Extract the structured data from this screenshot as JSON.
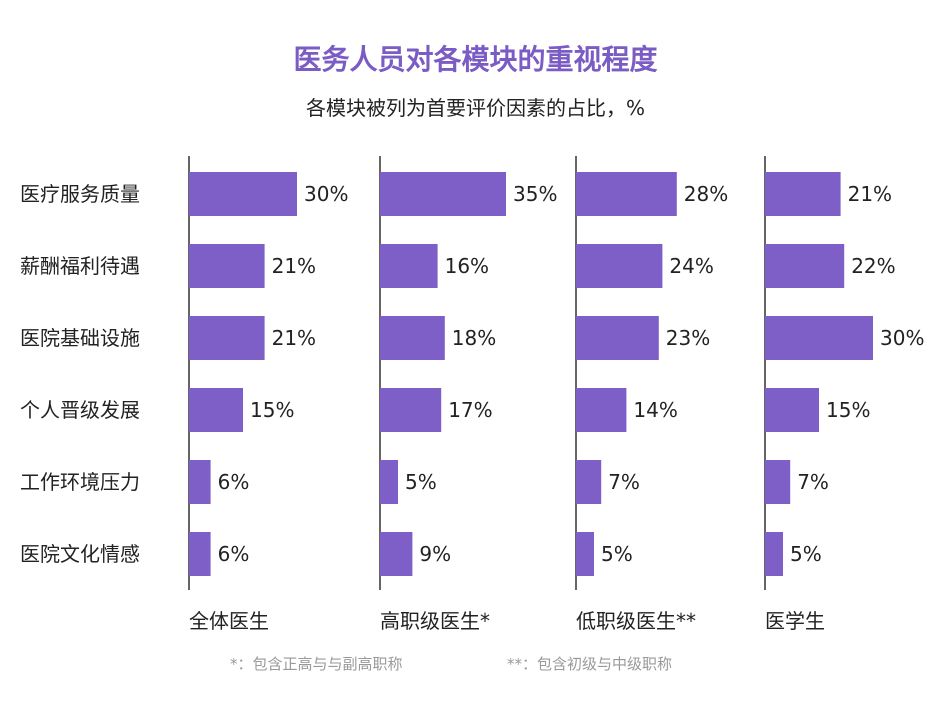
{
  "title": "医务人员对各模块的重视程度",
  "subtitle": "各模块被列为首要评价因素的占比，%",
  "chart_data": {
    "type": "bar",
    "orientation": "horizontal",
    "categories": [
      "医疗服务质量",
      "薪酬福利待遇",
      "医院基础设施",
      "个人晋级发展",
      "工作环境压力",
      "医院文化情感"
    ],
    "series": [
      {
        "name": "全体医生",
        "values": [
          30,
          21,
          21,
          15,
          6,
          6
        ]
      },
      {
        "name": "高职级医生*",
        "values": [
          35,
          16,
          18,
          17,
          5,
          9
        ]
      },
      {
        "name": "低职级医生**",
        "values": [
          28,
          24,
          23,
          14,
          7,
          5
        ]
      },
      {
        "name": "医学生",
        "values": [
          21,
          22,
          30,
          15,
          7,
          5
        ]
      }
    ],
    "value_suffix": "%",
    "bar_color": "#7e5fc7",
    "axis_color": "#333333"
  },
  "footnotes": [
    "*：包含正高与与副高职称",
    "**：包含初级与中级职称"
  ]
}
